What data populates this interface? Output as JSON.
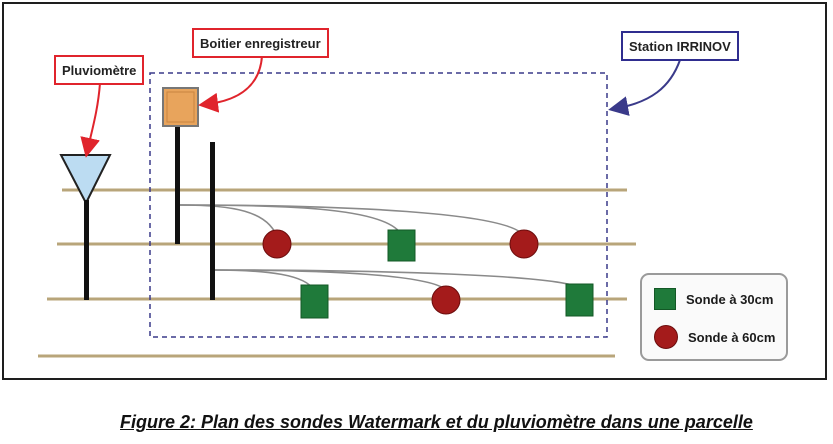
{
  "labels": {
    "pluviometre": "Pluviomètre",
    "boitier": "Boitier enregistreur",
    "station": "Station IRRINOV"
  },
  "legend": {
    "sonde30": "Sonde à 30cm",
    "sonde60": "Sonde à 60cm"
  },
  "caption": "Figure 2: Plan des sondes Watermark et du pluviomètre dans une parcelle",
  "colors": {
    "callout_red": "#e0242c",
    "callout_blue": "#2f2d8f",
    "row_line": "#b8a57a",
    "sonde_30": "#1f7a3a",
    "sonde_60": "#a41b1b",
    "boitier_fill": "#e8a45c",
    "pluvio_fill": "#bcdcf2",
    "station_border": "#3a3a8a"
  }
}
